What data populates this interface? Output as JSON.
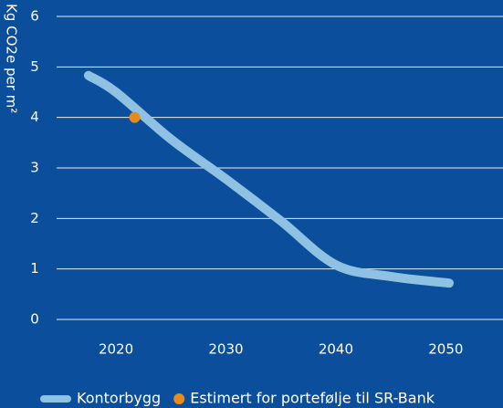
{
  "chart_data": {
    "type": "line",
    "y_label": "Kg CO2e per m²",
    "xlim": [
      2014.6,
      2055.2
    ],
    "xticks": [
      2020,
      2030,
      2040,
      2050
    ],
    "ylim": [
      0,
      6
    ],
    "yticks": [
      0,
      1,
      2,
      3,
      4,
      5,
      6
    ],
    "grid": true,
    "legend": "bottom",
    "series": [
      {
        "name": "Kontorbygg",
        "type": "line",
        "color": "#8fc1e3",
        "x": [
          2017.5,
          2020,
          2025,
          2030,
          2035,
          2040,
          2045,
          2050.3
        ],
        "values": [
          4.83,
          4.5,
          3.57,
          2.78,
          1.95,
          1.08,
          0.85,
          0.72
        ]
      },
      {
        "name": "Estimert for portefølje til SR-Bank",
        "type": "scatter",
        "color": "#e8891c",
        "x": [
          2021.7
        ],
        "values": [
          4
        ]
      }
    ]
  }
}
